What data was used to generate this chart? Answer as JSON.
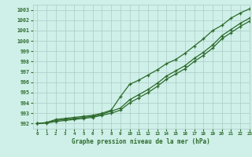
{
  "xlabel": "Graphe pression niveau de la mer (hPa)",
  "xlim": [
    -0.5,
    23
  ],
  "ylim": [
    991.5,
    1003.5
  ],
  "yticks": [
    992,
    993,
    994,
    995,
    996,
    997,
    998,
    999,
    1000,
    1001,
    1002,
    1003
  ],
  "xticks": [
    0,
    1,
    2,
    3,
    4,
    5,
    6,
    7,
    8,
    9,
    10,
    11,
    12,
    13,
    14,
    15,
    16,
    17,
    18,
    19,
    20,
    21,
    22,
    23
  ],
  "bg_color": "#cff0e8",
  "grid_color": "#aaccc4",
  "line_color": "#2d6a2d",
  "series1_x": [
    0,
    1,
    2,
    3,
    4,
    5,
    6,
    7,
    8,
    9,
    10,
    11,
    12,
    13,
    14,
    15,
    16,
    17,
    18,
    19,
    20,
    21,
    22,
    23
  ],
  "series1_y": [
    992.0,
    992.1,
    992.4,
    992.5,
    992.6,
    992.7,
    992.8,
    993.0,
    993.3,
    994.6,
    995.8,
    996.2,
    996.7,
    997.2,
    997.8,
    998.2,
    998.8,
    999.5,
    1000.2,
    1001.0,
    1001.5,
    1002.2,
    1002.7,
    1003.1
  ],
  "series2_x": [
    0,
    1,
    2,
    3,
    4,
    5,
    6,
    7,
    8,
    9,
    10,
    11,
    12,
    13,
    14,
    15,
    16,
    17,
    18,
    19,
    20,
    21,
    22,
    23
  ],
  "series2_y": [
    992.0,
    992.1,
    992.3,
    992.4,
    992.5,
    992.6,
    992.7,
    992.9,
    993.2,
    993.5,
    994.3,
    994.8,
    995.3,
    995.9,
    996.6,
    997.1,
    997.6,
    998.3,
    998.9,
    999.6,
    1000.5,
    1001.1,
    1001.7,
    1002.2
  ],
  "series3_x": [
    0,
    1,
    2,
    3,
    4,
    5,
    6,
    7,
    8,
    9,
    10,
    11,
    12,
    13,
    14,
    15,
    16,
    17,
    18,
    19,
    20,
    21,
    22,
    23
  ],
  "series3_y": [
    992.0,
    992.05,
    992.2,
    992.3,
    992.4,
    992.5,
    992.6,
    992.8,
    993.0,
    993.3,
    994.0,
    994.5,
    995.0,
    995.6,
    996.3,
    996.8,
    997.3,
    998.0,
    998.6,
    999.3,
    1000.2,
    1000.8,
    1001.4,
    1001.9
  ]
}
